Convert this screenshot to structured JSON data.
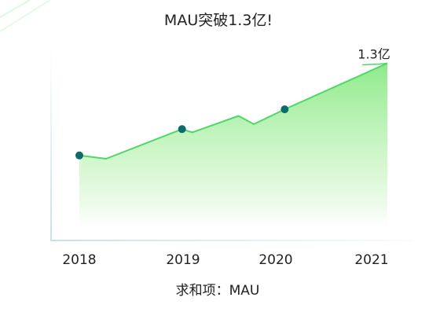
{
  "chart_data": {
    "type": "area",
    "title": "MAU突破1.3亿!",
    "xlabel": "",
    "ylabel": "",
    "ticks": [
      "2018",
      "2019",
      "2020",
      "2021"
    ],
    "series": [
      {
        "points": [
          {
            "x": 2018.0,
            "y": 0.74
          },
          {
            "x": 2018.26,
            "y": 0.72
          },
          {
            "x": 2019.0,
            "y": 0.9
          },
          {
            "x": 2019.1,
            "y": 0.88
          },
          {
            "x": 2019.55,
            "y": 0.98
          },
          {
            "x": 2019.7,
            "y": 0.93
          },
          {
            "x": 2020.0,
            "y": 1.02
          },
          {
            "x": 2021.0,
            "y": 1.3
          }
        ],
        "markers": [
          {
            "x": 2018.0,
            "y": 0.74
          },
          {
            "x": 2019.0,
            "y": 0.9
          },
          {
            "x": 2020.0,
            "y": 1.02
          }
        ]
      }
    ],
    "end_label": "1.3亿",
    "legend": "求和项：MAU",
    "ylim": [
      0.3,
      1.35
    ],
    "grid": false,
    "colors": {
      "line": "#4cd964",
      "fill_top": "#8eea8a",
      "fill_bottom": "#ffffff",
      "marker": "#0e6b6b",
      "axis": "#c5e3e6",
      "decor": "#d8f5dc"
    }
  }
}
